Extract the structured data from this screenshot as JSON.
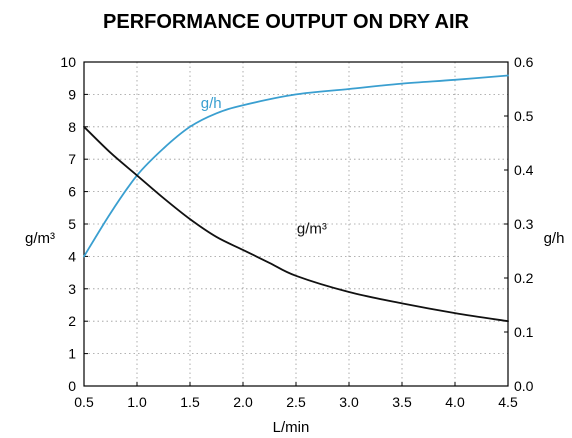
{
  "chart_data": {
    "type": "line",
    "title": "PERFORMANCE OUTPUT ON DRY AIR",
    "xlabel": "L/min",
    "ylabel_left": "g/m³",
    "ylabel_right": "g/h",
    "xlim": [
      0.5,
      4.5
    ],
    "ylim_left": [
      0,
      10
    ],
    "ylim_right": [
      0.0,
      0.6
    ],
    "grid": true,
    "x_ticks": [
      "0.5",
      "1.0",
      "1.5",
      "2.0",
      "2.5",
      "3.0",
      "3.5",
      "4.0",
      "4.5"
    ],
    "y_left_ticks": [
      "0",
      "1",
      "2",
      "3",
      "4",
      "5",
      "6",
      "7",
      "8",
      "9",
      "10"
    ],
    "y_right_ticks": [
      "0.0",
      "0.1",
      "0.2",
      "0.3",
      "0.4",
      "0.5",
      "0.6"
    ],
    "series": [
      {
        "name": "g/h",
        "axis": "right",
        "color": "#3a9fd0",
        "x": [
          0.5,
          0.75,
          1.0,
          1.25,
          1.5,
          1.75,
          2.0,
          2.5,
          3.0,
          3.5,
          4.0,
          4.5
        ],
        "y": [
          0.24,
          0.32,
          0.39,
          0.44,
          0.48,
          0.505,
          0.52,
          0.54,
          0.55,
          0.56,
          0.567,
          0.575
        ]
      },
      {
        "name": "g/m³",
        "axis": "left",
        "color": "#111111",
        "x": [
          0.5,
          0.75,
          1.0,
          1.25,
          1.5,
          1.75,
          2.0,
          2.25,
          2.5,
          3.0,
          3.5,
          4.0,
          4.5
        ],
        "y": [
          8.0,
          7.2,
          6.5,
          5.8,
          5.15,
          4.6,
          4.2,
          3.8,
          3.4,
          2.9,
          2.55,
          2.25,
          2.0
        ]
      }
    ],
    "annotations": [
      {
        "text": "g/h",
        "series": "g/h",
        "x": 1.7,
        "y": 0.515,
        "axis": "right"
      },
      {
        "text": "g/m³",
        "series": "g/m³",
        "x": 2.65,
        "y": 4.7,
        "axis": "left"
      }
    ]
  }
}
